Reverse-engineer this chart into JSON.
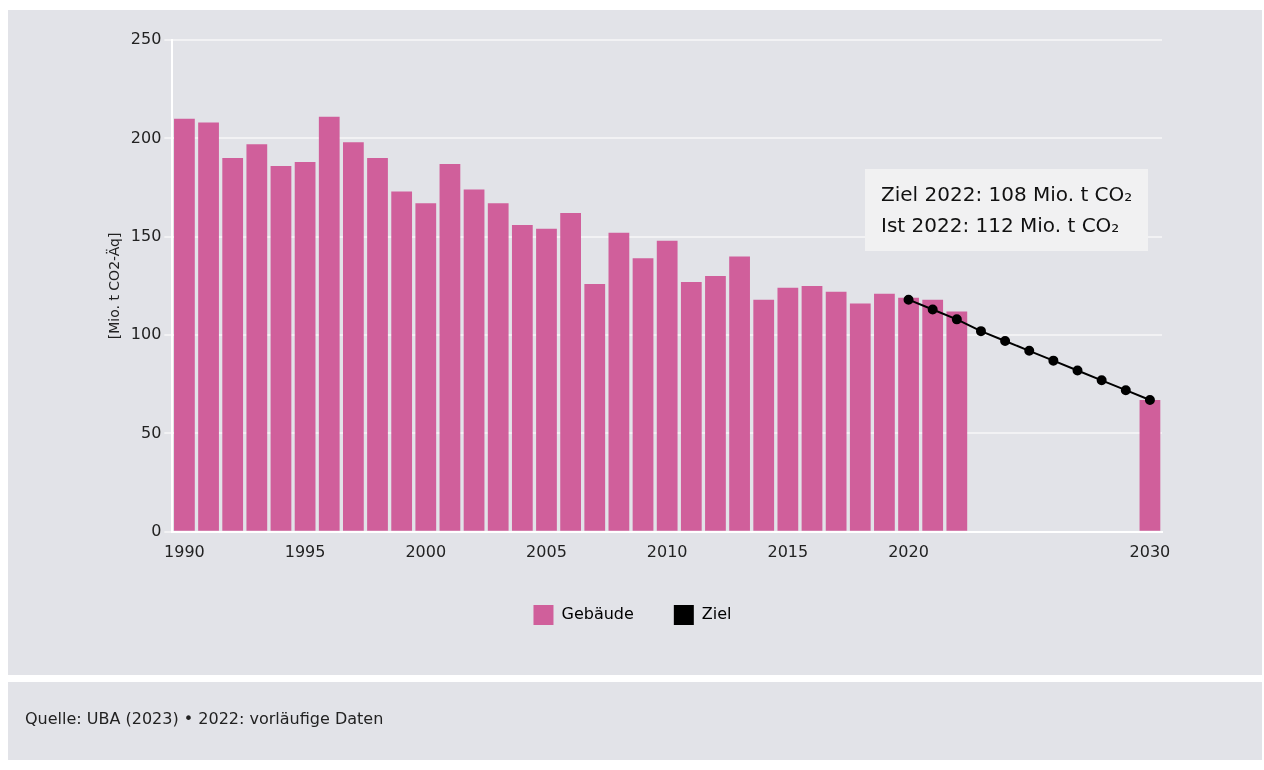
{
  "chart_data": {
    "type": "bar",
    "ylabel": "[Mio. t CO2-Äq]",
    "x": [
      1990,
      1991,
      1992,
      1993,
      1994,
      1995,
      1996,
      1997,
      1998,
      1999,
      2000,
      2001,
      2002,
      2003,
      2004,
      2005,
      2006,
      2007,
      2008,
      2009,
      2010,
      2011,
      2012,
      2013,
      2014,
      2015,
      2016,
      2017,
      2018,
      2019,
      2020,
      2021,
      2022,
      2030
    ],
    "series": [
      {
        "name": "Gebäude",
        "color": "#d05f9b",
        "values": [
          210,
          208,
          190,
          197,
          186,
          188,
          211,
          198,
          190,
          173,
          167,
          187,
          174,
          167,
          156,
          154,
          162,
          126,
          152,
          139,
          148,
          127,
          130,
          140,
          118,
          124,
          125,
          122,
          116,
          121,
          119,
          118,
          112,
          67
        ]
      },
      {
        "name": "Ziel",
        "type": "line",
        "color": "#000000",
        "x": [
          2020,
          2021,
          2022,
          2023,
          2024,
          2025,
          2026,
          2027,
          2028,
          2029,
          2030
        ],
        "values": [
          118,
          113,
          108,
          102,
          97,
          92,
          87,
          82,
          77,
          72,
          67
        ]
      }
    ],
    "xlim": [
      1989.5,
      2030.5
    ],
    "xticks": [
      1990,
      1995,
      2000,
      2005,
      2010,
      2015,
      2020,
      2030
    ],
    "ylim": [
      0,
      250
    ],
    "yticks": [
      0,
      50,
      100,
      150,
      200,
      250
    ],
    "grid": "y",
    "legend": "bottom",
    "marker": "circle",
    "line_style": "solid",
    "annotations": [
      "Ziel 2022: 108 Mio. t CO₂",
      "Ist 2022: 112 Mio. t CO₂",
      "Quelle: UBA (2023) • 2022: vorläufige Daten"
    ]
  }
}
